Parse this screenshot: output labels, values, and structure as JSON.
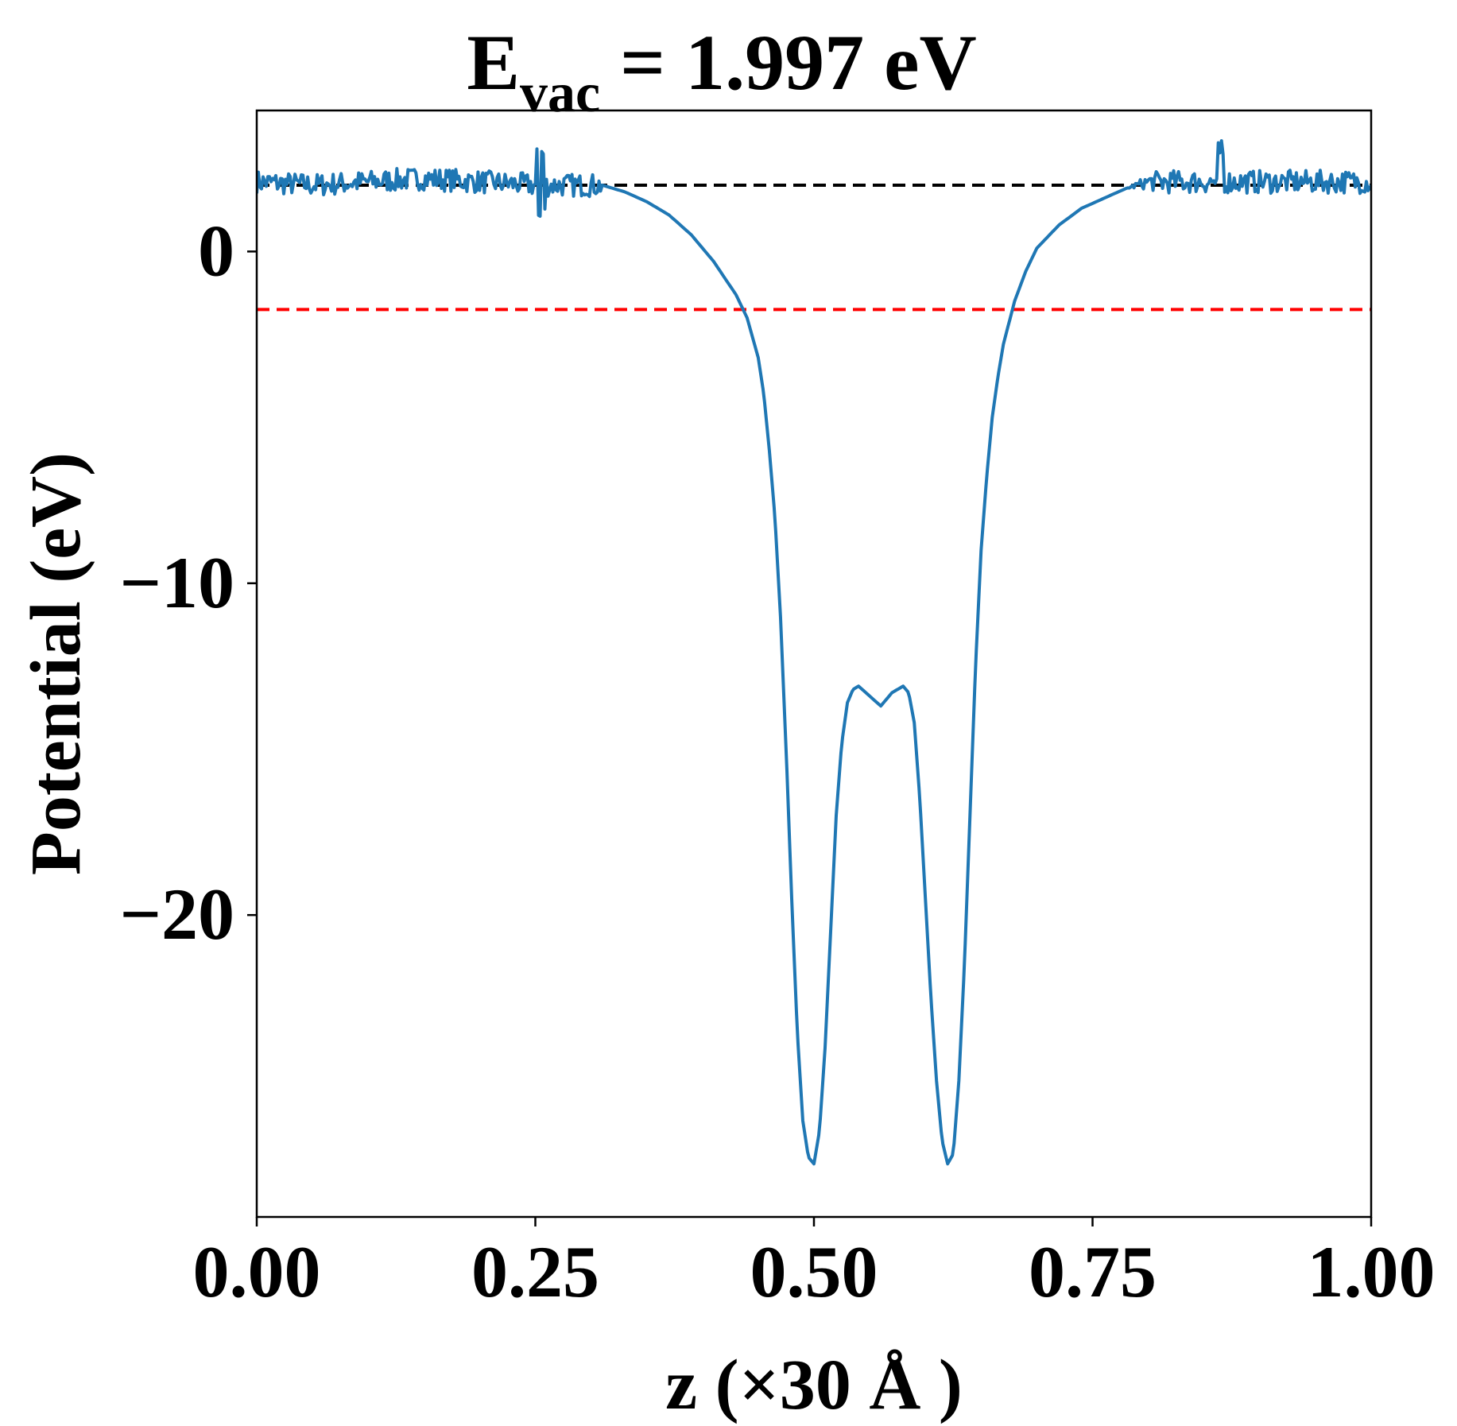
{
  "chart_data": {
    "type": "line",
    "title_main": "E",
    "title_sub": "vac",
    "title_rest": " = 1.997 eV",
    "xlabel": "z (×30 Å )",
    "ylabel": "Potential (eV)",
    "xlim": [
      0,
      1
    ],
    "ylim": [
      -29.1,
      4.25
    ],
    "xticks": [
      0,
      0.25,
      0.5,
      0.75,
      1.0
    ],
    "xtick_labels": [
      "0.00",
      "0.25",
      "0.50",
      "0.75",
      "1.00"
    ],
    "yticks": [
      0,
      -10,
      -20
    ],
    "ytick_labels": [
      "0",
      "−10",
      "−20"
    ],
    "grid": false,
    "hlines": [
      {
        "name": "vacuum-level",
        "y": 1.997,
        "color": "#000000",
        "style": "dashed"
      },
      {
        "name": "fermi-level",
        "y": -1.75,
        "color": "#ff0000",
        "style": "dashed"
      }
    ],
    "series": [
      {
        "name": "potential",
        "color": "#1f77b4",
        "noise_amplitude": 0.35,
        "x": [
          0.0,
          0.05,
          0.1,
          0.15,
          0.2,
          0.25,
          0.28,
          0.31,
          0.33,
          0.35,
          0.37,
          0.39,
          0.41,
          0.43,
          0.44,
          0.45,
          0.455,
          0.46,
          0.465,
          0.47,
          0.475,
          0.48,
          0.485,
          0.49,
          0.495,
          0.5,
          0.505,
          0.51,
          0.515,
          0.52,
          0.525,
          0.53,
          0.535,
          0.54,
          0.55,
          0.56,
          0.57,
          0.58,
          0.585,
          0.59,
          0.595,
          0.6,
          0.605,
          0.61,
          0.615,
          0.62,
          0.625,
          0.63,
          0.635,
          0.64,
          0.645,
          0.65,
          0.655,
          0.66,
          0.665,
          0.67,
          0.68,
          0.69,
          0.7,
          0.72,
          0.74,
          0.76,
          0.78,
          0.8,
          0.85,
          0.9,
          0.95,
          1.0
        ],
        "y": [
          2.1,
          2.0,
          2.1,
          2.2,
          2.1,
          2.0,
          2.0,
          2.0,
          1.8,
          1.5,
          1.1,
          0.5,
          -0.3,
          -1.3,
          -2.0,
          -3.2,
          -4.3,
          -6.0,
          -8.0,
          -11.0,
          -15.0,
          -19.5,
          -23.5,
          -26.2,
          -27.3,
          -27.5,
          -26.5,
          -24.0,
          -20.5,
          -17.0,
          -14.8,
          -13.6,
          -13.2,
          -13.1,
          -13.4,
          -13.7,
          -13.3,
          -13.1,
          -13.3,
          -14.2,
          -16.5,
          -19.5,
          -22.5,
          -25.0,
          -26.8,
          -27.5,
          -27.2,
          -25.0,
          -21.5,
          -17.0,
          -12.5,
          -9.0,
          -6.8,
          -5.0,
          -3.8,
          -2.8,
          -1.5,
          -0.6,
          0.1,
          0.8,
          1.3,
          1.6,
          1.9,
          2.1,
          2.1,
          2.1,
          2.1,
          2.1
        ]
      }
    ]
  }
}
